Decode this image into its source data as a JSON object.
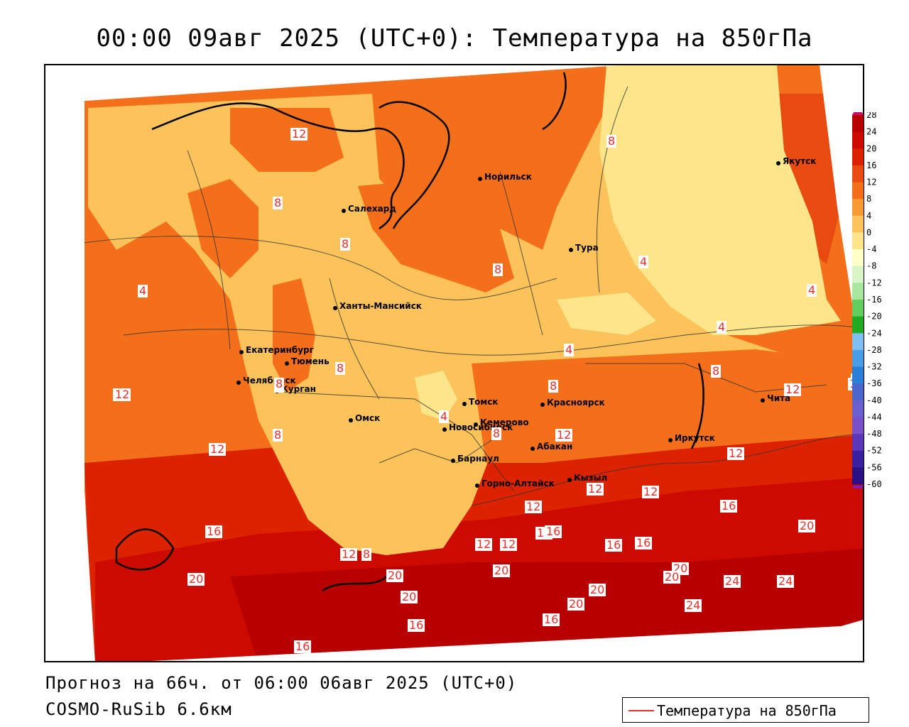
{
  "title": "00:00 09авг 2025 (UTC+0): Температура на 850гПа",
  "footer": {
    "forecast": "Прогноз на 66ч. от 06:00 06авг 2025 (UTC+0)",
    "model": "COSMO-RuSib 6.6км"
  },
  "legend": {
    "label": "Температура на 850гПа",
    "line_color": "#e8312a"
  },
  "colorbar": {
    "ticks": [
      "28",
      "24",
      "20",
      "16",
      "12",
      "8",
      "4",
      "0",
      "-4",
      "-8",
      "-12",
      "-16",
      "-20",
      "-24",
      "-28",
      "-32",
      "-36",
      "-40",
      "-44",
      "-48",
      "-52",
      "-56",
      "-60"
    ],
    "colors": [
      "#b80000",
      "#cc0a00",
      "#dd2200",
      "#e84a10",
      "#f46f1a",
      "#f79a34",
      "#fbc35a",
      "#fde58a",
      "#ffffc8",
      "#d8f5c8",
      "#a8e6a0",
      "#5fcf5f",
      "#22aa22",
      "#7fbff0",
      "#4a9ee8",
      "#2b7fd8",
      "#4c66cc",
      "#6b5fcf",
      "#7a50c8",
      "#5a38b8",
      "#3a20a0",
      "#2a1080"
    ]
  },
  "cities": [
    {
      "name": "Норильск"
    },
    {
      "name": "Салехард"
    },
    {
      "name": "Тура"
    },
    {
      "name": "Якутск"
    },
    {
      "name": "Ханты-Мансийск"
    },
    {
      "name": "Екатеринбург"
    },
    {
      "name": "Тюмень"
    },
    {
      "name": "Челябинск"
    },
    {
      "name": "Курган"
    },
    {
      "name": "Омск"
    },
    {
      "name": "Новосибирск"
    },
    {
      "name": "Томск"
    },
    {
      "name": "Кемерово"
    },
    {
      "name": "Красноярск"
    },
    {
      "name": "Барнаул"
    },
    {
      "name": "Абакан"
    },
    {
      "name": "Горно-Алтайск"
    },
    {
      "name": "Кызыл"
    },
    {
      "name": "Иркутск"
    },
    {
      "name": "Чита"
    }
  ],
  "contour_labels": [
    "12",
    "8",
    "8",
    "8",
    "8",
    "4",
    "4",
    "4",
    "4",
    "4",
    "8",
    "8",
    "8",
    "8",
    "8",
    "8",
    "12",
    "12",
    "12",
    "12",
    "12",
    "12",
    "12",
    "12",
    "16",
    "16",
    "16",
    "16",
    "20",
    "20",
    "20",
    "20",
    "20",
    "20",
    "24",
    "24",
    "24",
    "16",
    "16",
    "16",
    "12",
    "12",
    "12",
    "16",
    "20",
    "20",
    "16",
    "20",
    "12",
    "8",
    "8",
    "4",
    "8",
    "12"
  ]
}
